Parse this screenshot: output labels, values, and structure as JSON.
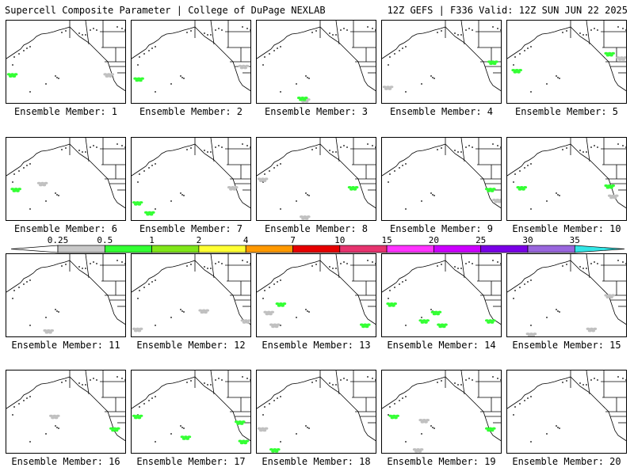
{
  "header": {
    "title": "Supercell Composite Parameter | College of DuPage NEXLAB",
    "run_info": "12Z GEFS | F336 Valid: 12Z SUN JUN 22 2025"
  },
  "member_label_prefix": "Ensemble Member: ",
  "members": [
    {
      "id": 1,
      "blobs": [
        [
          0.05,
          0.65,
          "green"
        ],
        [
          0.85,
          0.65,
          "gray"
        ]
      ]
    },
    {
      "id": 2,
      "blobs": [
        [
          0.06,
          0.7,
          "green"
        ],
        [
          0.93,
          0.55,
          "gray"
        ]
      ]
    },
    {
      "id": 3,
      "blobs": [
        [
          0.4,
          0.95,
          "gray"
        ],
        [
          0.38,
          0.93,
          "green"
        ]
      ]
    },
    {
      "id": 4,
      "blobs": [
        [
          0.92,
          0.5,
          "green"
        ],
        [
          0.05,
          0.8,
          "gray"
        ]
      ]
    },
    {
      "id": 5,
      "blobs": [
        [
          0.08,
          0.6,
          "green"
        ],
        [
          0.85,
          0.4,
          "green"
        ],
        [
          0.95,
          0.45,
          "gray"
        ]
      ]
    },
    {
      "id": 6,
      "blobs": [
        [
          0.08,
          0.62,
          "green"
        ],
        [
          0.3,
          0.55,
          "gray"
        ]
      ]
    },
    {
      "id": 7,
      "blobs": [
        [
          0.05,
          0.78,
          "green"
        ],
        [
          0.15,
          0.9,
          "green"
        ],
        [
          0.84,
          0.6,
          "gray"
        ]
      ]
    },
    {
      "id": 8,
      "blobs": [
        [
          0.8,
          0.6,
          "green"
        ],
        [
          0.4,
          0.95,
          "gray"
        ],
        [
          0.05,
          0.5,
          "gray"
        ]
      ]
    },
    {
      "id": 9,
      "blobs": [
        [
          0.9,
          0.62,
          "green"
        ],
        [
          0.96,
          0.75,
          "gray"
        ]
      ]
    },
    {
      "id": 10,
      "blobs": [
        [
          0.12,
          0.6,
          "green"
        ],
        [
          0.85,
          0.58,
          "green"
        ],
        [
          0.88,
          0.7,
          "gray"
        ]
      ]
    },
    {
      "id": 11,
      "blobs": [
        [
          0.35,
          0.92,
          "gray"
        ]
      ]
    },
    {
      "id": 12,
      "blobs": [
        [
          0.6,
          0.68,
          "gray"
        ],
        [
          0.95,
          0.8,
          "gray"
        ],
        [
          0.05,
          0.9,
          "gray"
        ]
      ]
    },
    {
      "id": 13,
      "blobs": [
        [
          0.2,
          0.6,
          "green"
        ],
        [
          0.1,
          0.7,
          "gray"
        ],
        [
          0.9,
          0.85,
          "green"
        ],
        [
          0.15,
          0.85,
          "gray"
        ]
      ]
    },
    {
      "id": 14,
      "blobs": [
        [
          0.08,
          0.6,
          "green"
        ],
        [
          0.35,
          0.8,
          "green"
        ],
        [
          0.5,
          0.85,
          "green"
        ],
        [
          0.9,
          0.8,
          "green"
        ],
        [
          0.45,
          0.7,
          "green"
        ]
      ]
    },
    {
      "id": 15,
      "blobs": [
        [
          0.85,
          0.5,
          "gray"
        ],
        [
          0.2,
          0.96,
          "gray"
        ],
        [
          0.7,
          0.9,
          "gray"
        ]
      ]
    },
    {
      "id": 16,
      "blobs": [
        [
          0.4,
          0.55,
          "gray"
        ],
        [
          0.9,
          0.7,
          "green"
        ]
      ]
    },
    {
      "id": 17,
      "blobs": [
        [
          0.05,
          0.55,
          "green"
        ],
        [
          0.9,
          0.62,
          "green"
        ],
        [
          0.93,
          0.85,
          "green"
        ],
        [
          0.45,
          0.8,
          "green"
        ]
      ]
    },
    {
      "id": 18,
      "blobs": [
        [
          0.15,
          0.95,
          "green"
        ],
        [
          0.05,
          0.7,
          "gray"
        ]
      ]
    },
    {
      "id": 19,
      "blobs": [
        [
          0.1,
          0.55,
          "green"
        ],
        [
          0.9,
          0.7,
          "green"
        ],
        [
          0.35,
          0.6,
          "gray"
        ],
        [
          0.3,
          0.95,
          "gray"
        ]
      ]
    },
    {
      "id": 20,
      "blobs": []
    }
  ],
  "colorbar": {
    "labels": [
      "0.25",
      "0.5",
      "1",
      "2",
      "4",
      "7",
      "10",
      "15",
      "20",
      "25",
      "30",
      "35"
    ],
    "colors": [
      "#c8c8c8",
      "#33ff33",
      "#80e619",
      "#ffff33",
      "#ff9900",
      "#e60000",
      "#e6336e",
      "#ff33ff",
      "#cc00ff",
      "#7a00e6",
      "#9966dd"
    ],
    "arrow_left_color": "#ffffff",
    "arrow_right_color": "#33e6e6"
  },
  "colors": {
    "green": "#33ff33",
    "gray": "#c0c0c0"
  }
}
